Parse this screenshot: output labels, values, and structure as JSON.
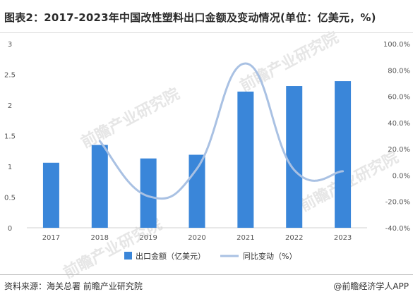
{
  "header": {
    "title": "图表2：2017-2023年中国改性塑料出口金额及变动情况(单位：亿美元，%)"
  },
  "footer": {
    "source": "资料来源：海关总署 前瞻产业研究院",
    "brand": "@前瞻经济学人APP"
  },
  "watermark": {
    "text": "前瞻产业研究院"
  },
  "colors": {
    "bar": "#3a86d9",
    "line": "#a9c1e3",
    "axis": "#d0d0d0"
  },
  "chart_data": {
    "type": "bar",
    "categories": [
      "2017",
      "2018",
      "2019",
      "2020",
      "2021",
      "2022",
      "2023"
    ],
    "series": [
      {
        "name": "出口金额（亿美元）",
        "type": "bar",
        "axis": "left",
        "values": [
          1.06,
          1.35,
          1.13,
          1.19,
          2.22,
          2.31,
          2.39
        ]
      },
      {
        "name": "同比变动（%）",
        "type": "line",
        "axis": "right",
        "values": [
          null,
          26.0,
          -16.0,
          5.0,
          85.0,
          4.0,
          3.0
        ]
      }
    ],
    "y_left": {
      "min": 0,
      "max": 3,
      "ticks": [
        "0",
        "0.5",
        "1",
        "1.5",
        "2",
        "2.5",
        "3"
      ]
    },
    "y_right": {
      "min": -40,
      "max": 100,
      "ticks": [
        "-40.0%",
        "-20.0%",
        "0.0%",
        "20.0%",
        "40.0%",
        "60.0%",
        "80.0%",
        "100.0%"
      ]
    },
    "legend_position": "bottom",
    "grid": false
  }
}
